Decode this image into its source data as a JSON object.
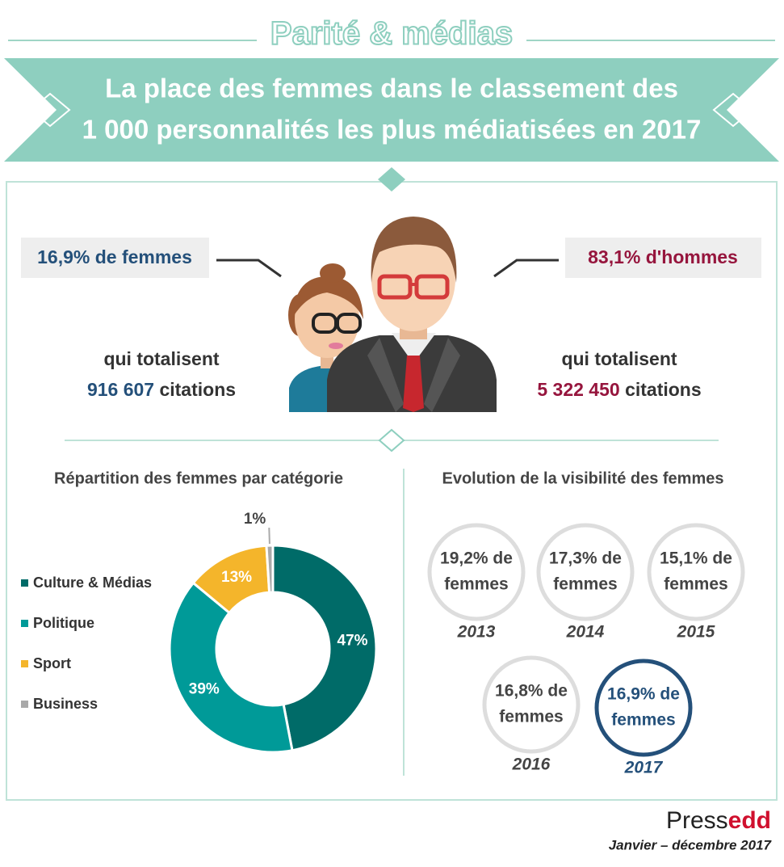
{
  "header": {
    "kicker": "Parité & médias",
    "title_lines": [
      "La place des femmes dans le classement des",
      "1 000 personnalités les plus médiatisées en 2017"
    ]
  },
  "women": {
    "share": "16,9% de femmes",
    "totals_label": "qui totalisent",
    "citations": "916 607",
    "citations_unit": "citations"
  },
  "men": {
    "share": "83,1% d'hommes",
    "totals_label": "qui totalisent",
    "citations": "5 322 450",
    "citations_unit": "citations"
  },
  "chart_data": {
    "type": "donut",
    "title": "Répartition des femmes par catégorie",
    "categories": [
      "Culture & Médias",
      "Politique",
      "Sport",
      "Business"
    ],
    "values": [
      47,
      39,
      13,
      1
    ],
    "value_labels": [
      "47%",
      "39%",
      "13%",
      "1%"
    ],
    "colors": [
      "#006b68",
      "#009a98",
      "#f4b52b",
      "#a9a9a9"
    ]
  },
  "evolution": {
    "title": "Evolution de la visibilité des femmes",
    "items": [
      {
        "line1": "19,2% de",
        "line2": "femmes",
        "year": "2013"
      },
      {
        "line1": "17,3% de",
        "line2": "femmes",
        "year": "2014"
      },
      {
        "line1": "15,1% de",
        "line2": "femmes",
        "year": "2015"
      },
      {
        "line1": "16,8% de",
        "line2": "femmes",
        "year": "2016"
      },
      {
        "line1": "16,9% de",
        "line2": "femmes",
        "year": "2017"
      }
    ]
  },
  "footer": {
    "brand_a": "Press",
    "brand_b": "edd",
    "period": "Janvier – décembre 2017"
  }
}
